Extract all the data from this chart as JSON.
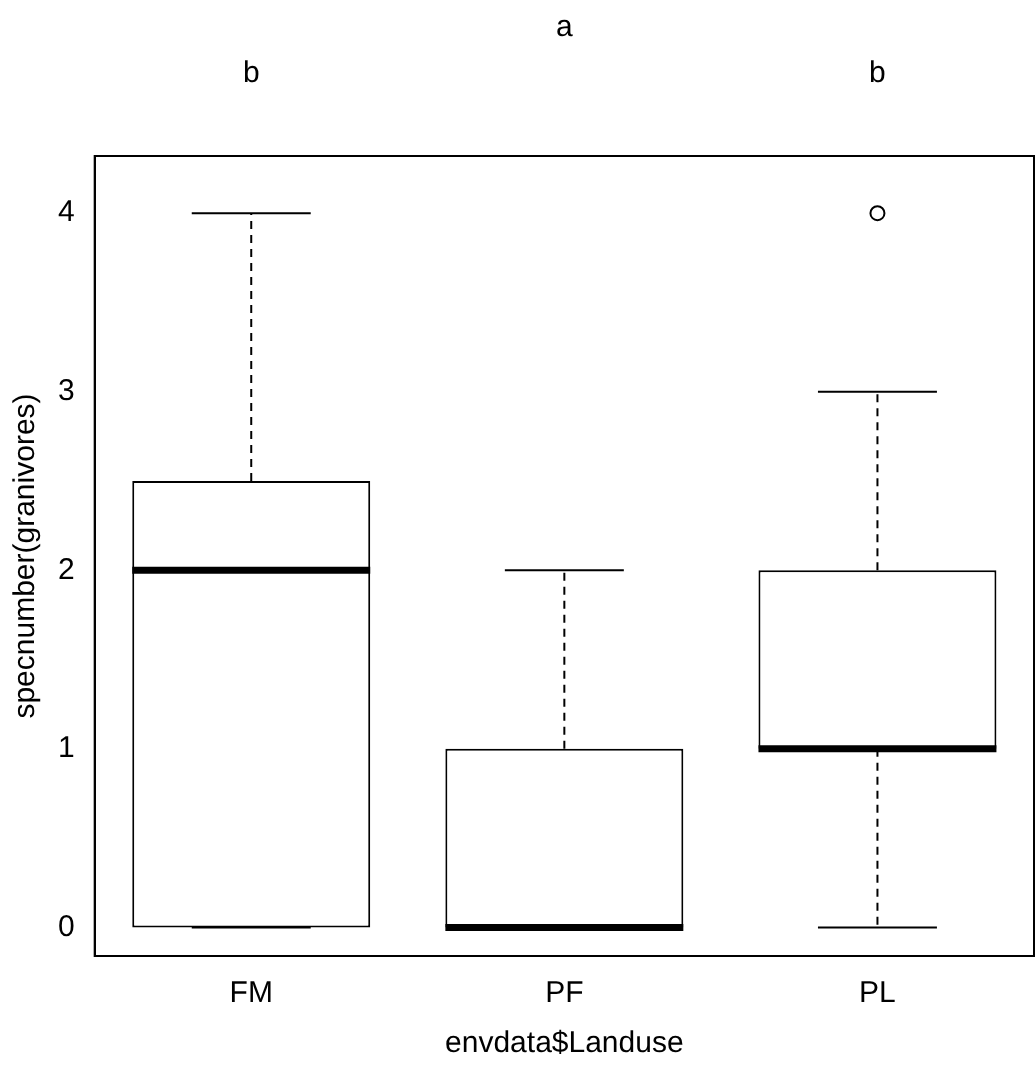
{
  "chart_data": {
    "type": "box",
    "xlabel": "envdata$Landuse",
    "ylabel": "specnumber(granivores)",
    "categories": [
      "FM",
      "PF",
      "PL"
    ],
    "boxes": [
      {
        "low": 0,
        "q1": 0,
        "median": 2,
        "q3": 2.5,
        "high": 4
      },
      {
        "low": 0,
        "q1": 0,
        "median": 0,
        "q3": 1,
        "high": 2
      },
      {
        "low": 0,
        "q1": 1,
        "median": 1,
        "q3": 2,
        "high": 3,
        "outliers": [
          4
        ]
      }
    ],
    "ylim": [
      -0.16,
      4.32
    ],
    "yticks": [
      0,
      1,
      2,
      3,
      4
    ],
    "annotations": [
      "b",
      "a",
      "b"
    ]
  }
}
